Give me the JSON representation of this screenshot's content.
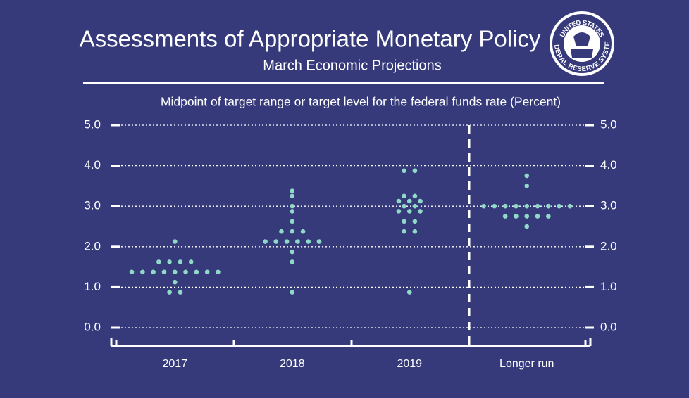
{
  "seal": {
    "top": "UNITED STATES",
    "bottom": "FEDERAL RESERVE SYSTEM"
  },
  "chart_data": {
    "type": "dot",
    "title": "Assessments of Appropriate Monetary Policy",
    "subtitle": "March Economic Projections",
    "y_label": "Midpoint of target range or target level for the federal funds rate (Percent)",
    "categories": [
      "2017",
      "2018",
      "2019",
      "Longer run"
    ],
    "values": [
      [
        2.125,
        1.625,
        1.625,
        1.625,
        1.625,
        1.375,
        1.375,
        1.375,
        1.375,
        1.375,
        1.375,
        1.375,
        1.375,
        1.375,
        1.125,
        0.875,
        0.875
      ],
      [
        3.375,
        3.25,
        3.0,
        2.875,
        2.625,
        2.375,
        2.375,
        2.375,
        2.125,
        2.125,
        2.125,
        2.125,
        2.125,
        2.125,
        1.875,
        1.625,
        0.875
      ],
      [
        3.875,
        3.875,
        3.25,
        3.25,
        3.125,
        3.125,
        3.125,
        3.0,
        3.0,
        2.875,
        2.875,
        2.875,
        2.625,
        2.625,
        2.375,
        2.375,
        0.875
      ],
      [
        3.75,
        3.5,
        3.0,
        3.0,
        3.0,
        3.0,
        3.0,
        3.0,
        3.0,
        3.0,
        3.0,
        2.75,
        2.75,
        2.75,
        2.75,
        2.75,
        2.5
      ]
    ],
    "color": "#8fd9c7",
    "ylim": [
      0,
      5
    ],
    "yticks": [
      {
        "value": 0,
        "label": "0.0"
      },
      {
        "value": 1,
        "label": "1.0"
      },
      {
        "value": 2,
        "label": "2.0"
      },
      {
        "value": 3,
        "label": "3.0"
      },
      {
        "value": 4,
        "label": "4.0"
      },
      {
        "value": 5,
        "label": "5.0"
      }
    ],
    "grid": true
  }
}
